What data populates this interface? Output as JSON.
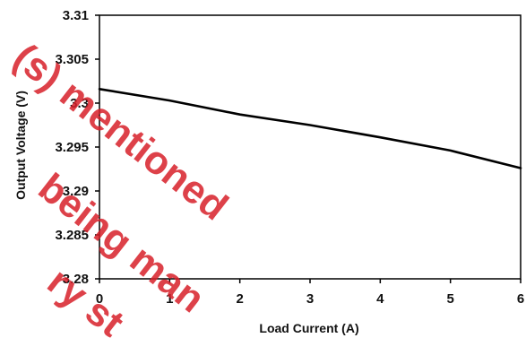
{
  "chart_data": {
    "type": "line",
    "xlabel": "Load Current (A)",
    "ylabel": "Output Voltage (V)",
    "xlim": [
      0,
      6
    ],
    "ylim": [
      3.28,
      3.31
    ],
    "x_ticks": [
      0,
      1,
      2,
      3,
      4,
      5,
      6
    ],
    "y_ticks": [
      3.28,
      3.285,
      3.29,
      3.295,
      3.3,
      3.305,
      3.31
    ],
    "x_tick_labels": [
      "0",
      "1",
      "2",
      "3",
      "4",
      "5",
      "6"
    ],
    "y_tick_labels": [
      "3.28",
      "3.285",
      "3.29",
      "3.295",
      "3.3",
      "3.305",
      "3.31"
    ],
    "grid": false,
    "series": [
      {
        "x": [
          0,
          1,
          2,
          3,
          4,
          5,
          6
        ],
        "y": [
          3.3016,
          3.3003,
          3.2987,
          3.2975,
          3.2961,
          3.2946,
          3.2926
        ],
        "color": "#000000"
      }
    ]
  },
  "watermark": {
    "lines": [
      "(s) mentioned",
      "being man",
      "ry st"
    ],
    "color": "#d8202a"
  }
}
